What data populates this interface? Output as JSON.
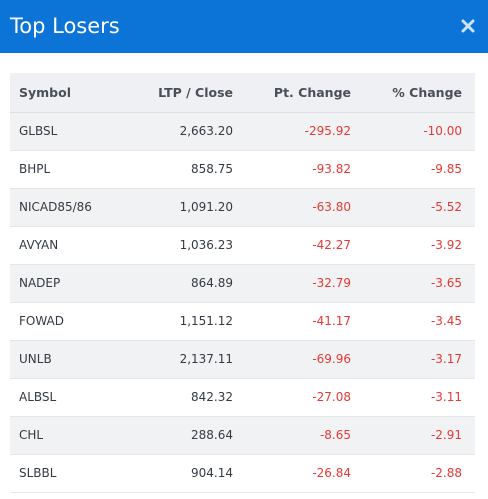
{
  "modal": {
    "title": "Top Losers",
    "close_icon": "close-icon",
    "header_color": "#0b74d6"
  },
  "table": {
    "columns": [
      "Symbol",
      "LTP / Close",
      "Pt. Change",
      "% Change"
    ],
    "negative_color": "#e53935",
    "rows": [
      {
        "symbol": "GLBSL",
        "ltp": "2,663.20",
        "pt_change": "-295.92",
        "pct_change": "-10.00"
      },
      {
        "symbol": "BHPL",
        "ltp": "858.75",
        "pt_change": "-93.82",
        "pct_change": "-9.85"
      },
      {
        "symbol": "NICAD85/86",
        "ltp": "1,091.20",
        "pt_change": "-63.80",
        "pct_change": "-5.52"
      },
      {
        "symbol": "AVYAN",
        "ltp": "1,036.23",
        "pt_change": "-42.27",
        "pct_change": "-3.92"
      },
      {
        "symbol": "NADEP",
        "ltp": "864.89",
        "pt_change": "-32.79",
        "pct_change": "-3.65"
      },
      {
        "symbol": "FOWAD",
        "ltp": "1,151.12",
        "pt_change": "-41.17",
        "pct_change": "-3.45"
      },
      {
        "symbol": "UNLB",
        "ltp": "2,137.11",
        "pt_change": "-69.96",
        "pct_change": "-3.17"
      },
      {
        "symbol": "ALBSL",
        "ltp": "842.32",
        "pt_change": "-27.08",
        "pct_change": "-3.11"
      },
      {
        "symbol": "CHL",
        "ltp": "288.64",
        "pt_change": "-8.65",
        "pct_change": "-2.91"
      },
      {
        "symbol": "SLBBL",
        "ltp": "904.14",
        "pt_change": "-26.84",
        "pct_change": "-2.88"
      }
    ]
  }
}
